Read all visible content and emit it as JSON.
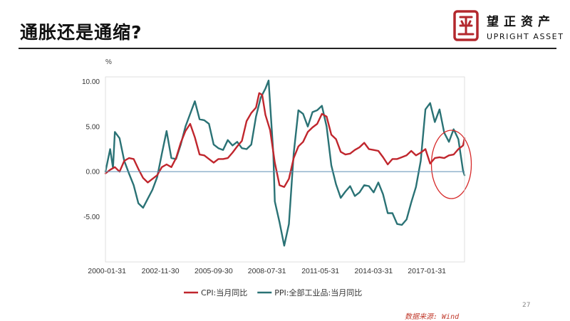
{
  "page": {
    "title": "通胀还是通缩?",
    "page_number": "27",
    "source": "数据来源: Wind"
  },
  "logo": {
    "name_cn": "望正资产",
    "name_en": "UPRIGHT ASSET",
    "seal_color": "#b3282d"
  },
  "colors": {
    "cpi": "#c0262d",
    "ppi": "#2a7275",
    "highlight": "#d62828"
  },
  "chart_data": {
    "type": "line",
    "ylabel": "%",
    "ylim": [
      -10,
      10.5
    ],
    "yticks": [
      10,
      5,
      0,
      -5
    ],
    "ytick_labels": [
      "10.00",
      "5.00",
      "0.00",
      "-5.00"
    ],
    "xlim": [
      2000.0,
      2019.08
    ],
    "xticks": [
      2000.08,
      2002.92,
      2005.75,
      2008.58,
      2011.42,
      2014.25,
      2017.08
    ],
    "xtick_labels": [
      "2000-01-31",
      "2002-11-30",
      "2005-09-30",
      "2008-07-31",
      "2011-05-31",
      "2014-03-31",
      "2017-01-31"
    ],
    "grid": false,
    "legend": {
      "position": "bottom-center",
      "entries": [
        "CPI:当月同比",
        "PPI:全部工业品:当月同比"
      ]
    },
    "annotation": "highlight-circle-latest-values",
    "series": [
      {
        "name": "CPI:当月同比",
        "x": [
          2000.0,
          2000.25,
          2000.5,
          2000.75,
          2001.0,
          2001.25,
          2001.5,
          2001.75,
          2002.0,
          2002.25,
          2002.5,
          2002.75,
          2003.0,
          2003.25,
          2003.5,
          2003.75,
          2004.0,
          2004.25,
          2004.5,
          2004.75,
          2005.0,
          2005.25,
          2005.5,
          2005.75,
          2006.0,
          2006.25,
          2006.5,
          2006.75,
          2007.0,
          2007.25,
          2007.5,
          2007.75,
          2008.0,
          2008.17,
          2008.33,
          2008.5,
          2008.75,
          2009.0,
          2009.25,
          2009.5,
          2009.75,
          2010.0,
          2010.25,
          2010.5,
          2010.75,
          2011.0,
          2011.25,
          2011.5,
          2011.75,
          2012.0,
          2012.25,
          2012.5,
          2012.75,
          2013.0,
          2013.25,
          2013.5,
          2013.75,
          2014.0,
          2014.25,
          2014.5,
          2014.75,
          2015.0,
          2015.25,
          2015.5,
          2015.75,
          2016.0,
          2016.25,
          2016.5,
          2016.75,
          2017.0,
          2017.25,
          2017.5,
          2017.75,
          2018.0,
          2018.25,
          2018.5,
          2018.75,
          2019.0,
          2019.08
        ],
        "values": [
          -0.2,
          0.2,
          0.5,
          0.0,
          1.2,
          1.5,
          1.4,
          0.3,
          -0.7,
          -1.2,
          -0.8,
          -0.4,
          0.5,
          0.8,
          0.5,
          1.5,
          3.2,
          4.5,
          5.3,
          3.8,
          1.9,
          1.8,
          1.4,
          1.0,
          1.4,
          1.4,
          1.5,
          2.1,
          2.8,
          3.4,
          5.6,
          6.5,
          7.1,
          8.7,
          8.5,
          6.3,
          4.6,
          1.0,
          -1.5,
          -1.7,
          -0.8,
          1.5,
          2.8,
          3.3,
          4.4,
          4.9,
          5.3,
          6.4,
          6.1,
          4.1,
          3.6,
          2.2,
          1.9,
          2.0,
          2.4,
          2.7,
          3.2,
          2.5,
          2.4,
          2.3,
          1.6,
          0.8,
          1.4,
          1.4,
          1.6,
          1.8,
          2.3,
          1.8,
          2.1,
          2.5,
          0.9,
          1.5,
          1.6,
          1.5,
          1.8,
          1.9,
          2.5,
          2.9,
          3.7
        ]
      },
      {
        "name": "PPI:全部工业品:当月同比",
        "x": [
          2000.0,
          2000.25,
          2000.4,
          2000.5,
          2000.75,
          2001.0,
          2001.25,
          2001.5,
          2001.75,
          2002.0,
          2002.25,
          2002.5,
          2002.75,
          2003.0,
          2003.25,
          2003.5,
          2003.75,
          2004.0,
          2004.25,
          2004.5,
          2004.75,
          2005.0,
          2005.25,
          2005.5,
          2005.75,
          2006.0,
          2006.25,
          2006.5,
          2006.75,
          2007.0,
          2007.25,
          2007.5,
          2007.75,
          2008.0,
          2008.25,
          2008.5,
          2008.67,
          2008.92,
          2009.0,
          2009.25,
          2009.5,
          2009.75,
          2010.0,
          2010.25,
          2010.5,
          2010.75,
          2011.0,
          2011.25,
          2011.5,
          2011.75,
          2012.0,
          2012.25,
          2012.5,
          2012.75,
          2013.0,
          2013.25,
          2013.5,
          2013.75,
          2014.0,
          2014.25,
          2014.5,
          2014.75,
          2015.0,
          2015.25,
          2015.5,
          2015.75,
          2016.0,
          2016.25,
          2016.5,
          2016.75,
          2017.0,
          2017.25,
          2017.5,
          2017.75,
          2018.0,
          2018.25,
          2018.5,
          2018.75,
          2019.0,
          2019.08
        ],
        "values": [
          0.0,
          2.5,
          0.4,
          4.4,
          3.7,
          1.2,
          -0.2,
          -1.5,
          -3.5,
          -4.0,
          -3.0,
          -2.0,
          -0.6,
          2.0,
          4.5,
          1.5,
          1.4,
          3.0,
          5.0,
          6.4,
          7.8,
          5.8,
          5.7,
          5.3,
          3.0,
          2.6,
          2.4,
          3.5,
          2.9,
          3.3,
          2.6,
          2.5,
          3.0,
          6.1,
          8.2,
          9.2,
          10.1,
          2.0,
          -3.3,
          -5.6,
          -8.2,
          -5.8,
          2.0,
          6.8,
          6.4,
          5.0,
          6.6,
          6.8,
          7.3,
          5.0,
          0.7,
          -1.4,
          -2.9,
          -2.2,
          -1.6,
          -2.7,
          -2.3,
          -1.5,
          -1.6,
          -2.3,
          -1.2,
          -2.5,
          -4.6,
          -4.6,
          -5.8,
          -5.9,
          -5.3,
          -3.4,
          -1.7,
          1.2,
          6.9,
          7.6,
          5.5,
          6.9,
          4.3,
          3.3,
          4.7,
          3.6,
          0.1,
          -0.4
        ]
      }
    ]
  }
}
